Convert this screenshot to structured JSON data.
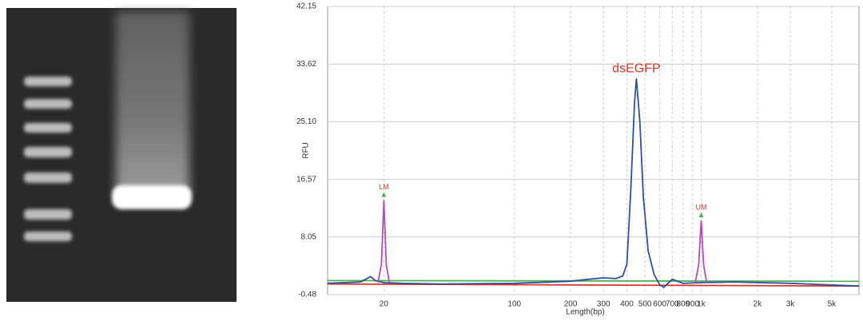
{
  "chart_data": {
    "type": "line",
    "y_label": "RFU",
    "x_label": "Length(bp)",
    "annotations": [
      "dsEGFP",
      "LM",
      "UM"
    ],
    "log_x": true,
    "grid": true,
    "xlim": [
      10,
      7000
    ],
    "ylim": [
      -0.48,
      42.15
    ],
    "yticks": [
      -0.48,
      8.05,
      16.57,
      {
        "value": 25.1,
        "label": "25.10"
      },
      33.62,
      42.15
    ],
    "xticks": [
      20,
      100,
      200,
      300,
      400,
      500,
      600,
      700,
      800,
      900,
      {
        "value": 1000,
        "label": "1k"
      },
      {
        "value": 2000,
        "label": "2k"
      },
      {
        "value": 3000,
        "label": "3k"
      },
      {
        "value": 5000,
        "label": "5k"
      }
    ],
    "series": [
      {
        "color": "#4caf50",
        "x": [
          10,
          7000
        ],
        "values": [
          1.6,
          1.5
        ]
      },
      {
        "color": "#d9342b",
        "x": [
          10,
          7000
        ],
        "values": [
          1.1,
          0.8
        ]
      },
      {
        "color": "#2f4fa0",
        "x": [
          10,
          15,
          17,
          18,
          20,
          25,
          40,
          100,
          200,
          250,
          300,
          350,
          380,
          400,
          420,
          440,
          450,
          470,
          490,
          520,
          560,
          600,
          630,
          700,
          800,
          1000,
          1500,
          3000,
          7000
        ],
        "values": [
          1.2,
          1.4,
          2.2,
          1.6,
          1.3,
          1.2,
          1.1,
          1.2,
          1.5,
          1.8,
          2.0,
          1.9,
          2.3,
          4,
          15,
          28,
          31.5,
          25,
          14,
          6,
          2.5,
          1.0,
          0.6,
          1.8,
          1.2,
          1.3,
          1.4,
          1.2,
          0.8
        ]
      },
      {
        "color": "#b04fb8",
        "x": [
          18.6,
          19.4,
          20,
          20.6,
          21.4,
          100,
          930,
          970,
          1000,
          1030,
          1070
        ],
        "values": [
          1.3,
          4,
          13.5,
          4,
          1.3,
          null,
          1.3,
          4,
          10.5,
          4,
          1.3
        ]
      }
    ]
  }
}
